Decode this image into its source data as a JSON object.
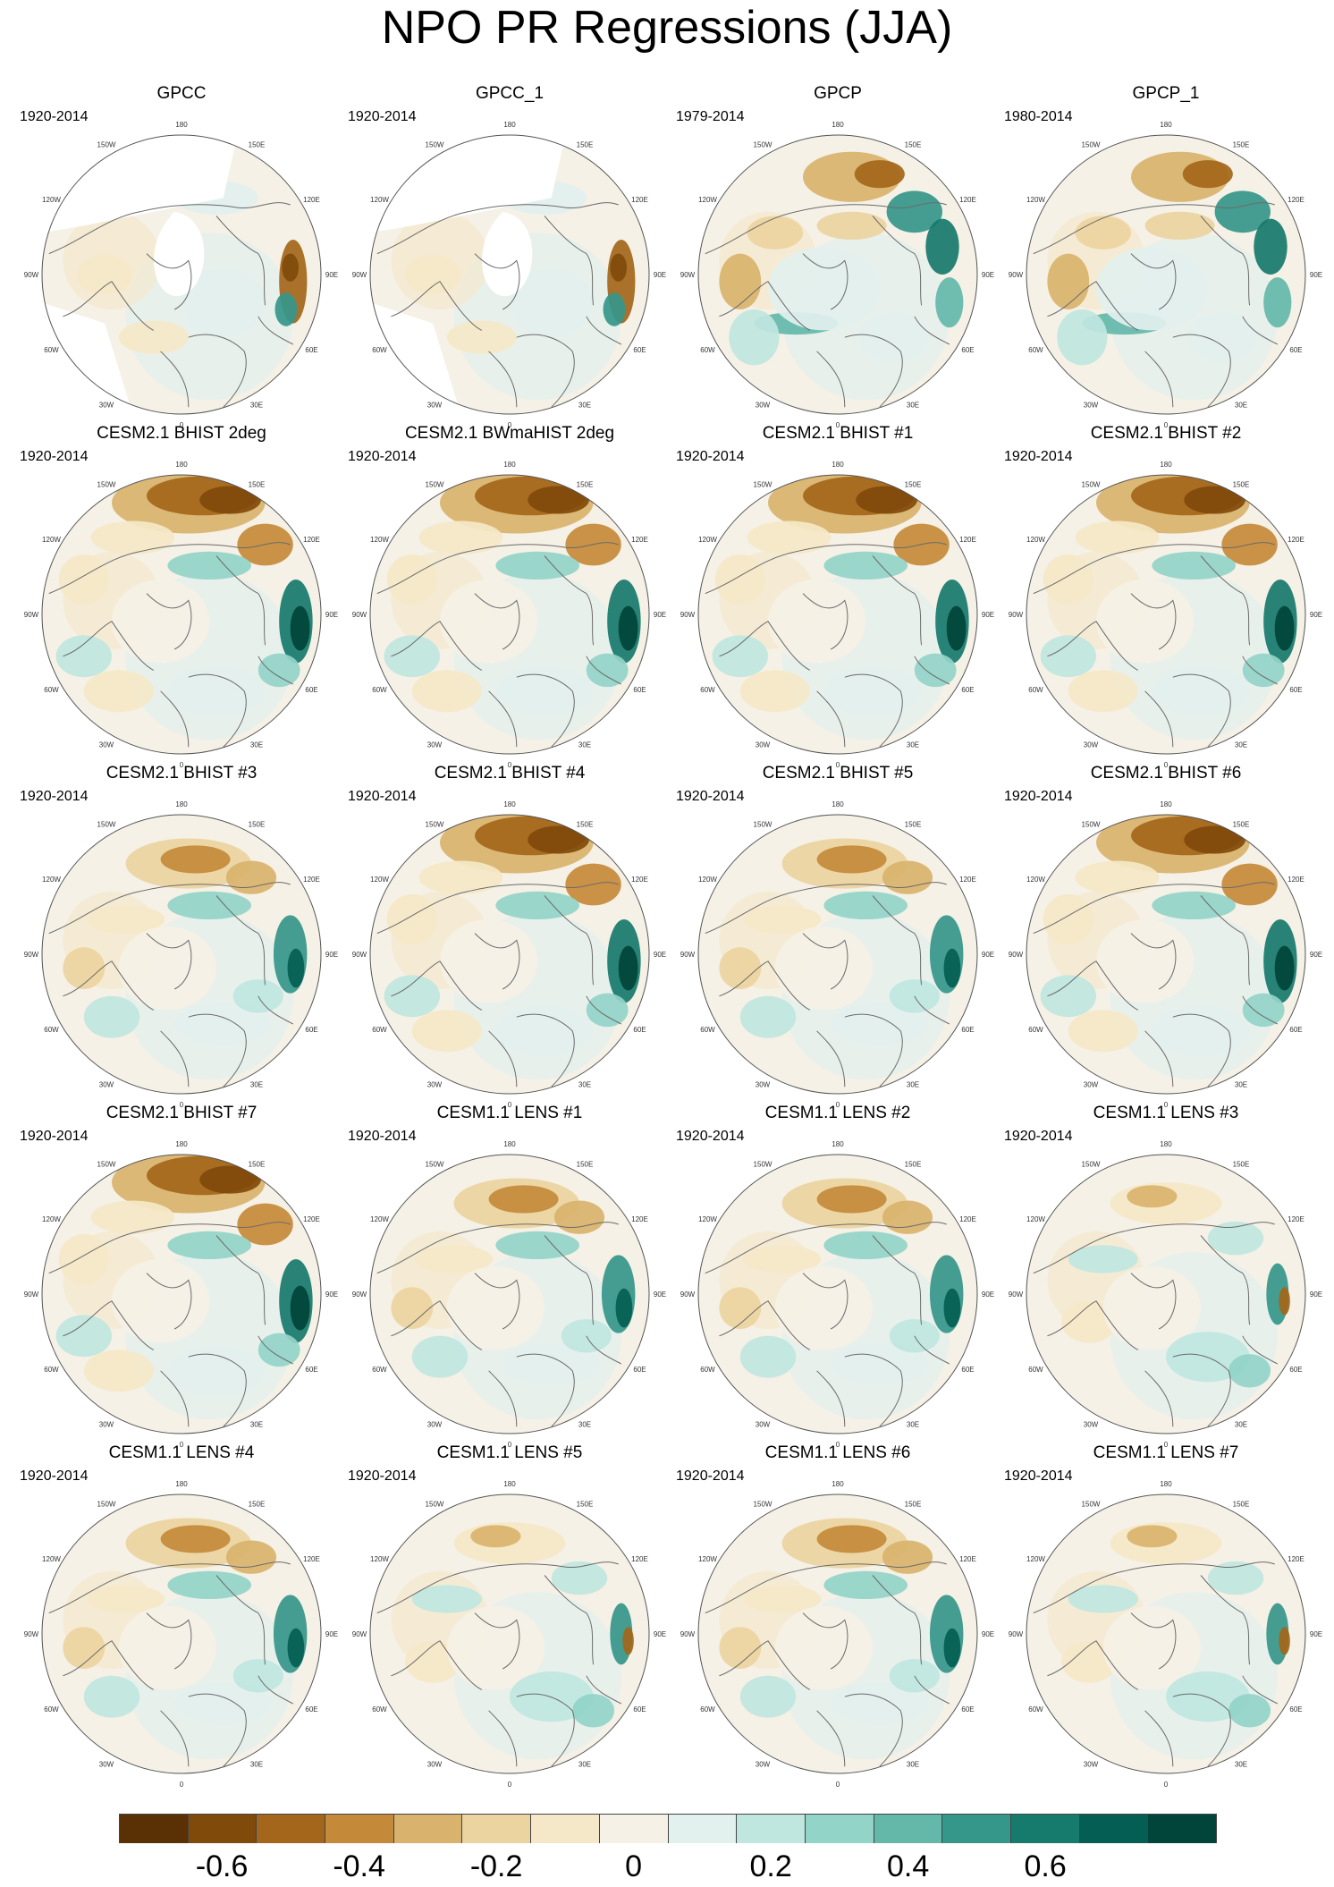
{
  "title": "NPO PR Regressions (JJA)",
  "meridian_labels": [
    "180",
    "150E",
    "120E",
    "90E",
    "60E",
    "30E",
    "0",
    "30W",
    "60W",
    "90W",
    "120W",
    "150W"
  ],
  "panels": [
    {
      "title": "GPCC",
      "period": "1920-2014",
      "pattern": "obs_gpcc"
    },
    {
      "title": "GPCC_1",
      "period": "1920-2014",
      "pattern": "obs_gpcc"
    },
    {
      "title": "GPCP",
      "period": "1979-2014",
      "pattern": "obs_gpcp"
    },
    {
      "title": "GPCP_1",
      "period": "1980-2014",
      "pattern": "obs_gpcp"
    },
    {
      "title": "CESM2.1 BHIST 2deg",
      "period": "1920-2014",
      "pattern": "model_strong"
    },
    {
      "title": "CESM2.1 BWmaHIST 2deg",
      "period": "1920-2014",
      "pattern": "model_strong"
    },
    {
      "title": "CESM2.1 BHIST #1",
      "period": "1920-2014",
      "pattern": "model_strong"
    },
    {
      "title": "CESM2.1 BHIST #2",
      "period": "1920-2014",
      "pattern": "model_strong"
    },
    {
      "title": "CESM2.1 BHIST #3",
      "period": "1920-2014",
      "pattern": "model_mid"
    },
    {
      "title": "CESM2.1 BHIST #4",
      "period": "1920-2014",
      "pattern": "model_strong"
    },
    {
      "title": "CESM2.1 BHIST #5",
      "period": "1920-2014",
      "pattern": "model_mid"
    },
    {
      "title": "CESM2.1 BHIST #6",
      "period": "1920-2014",
      "pattern": "model_strong"
    },
    {
      "title": "CESM2.1 BHIST #7",
      "period": "1920-2014",
      "pattern": "model_strong"
    },
    {
      "title": "CESM1.1 LENS #1",
      "period": "1920-2014",
      "pattern": "model_mid"
    },
    {
      "title": "CESM1.1 LENS #2",
      "period": "1920-2014",
      "pattern": "model_mid"
    },
    {
      "title": "CESM1.1 LENS #3",
      "period": "1920-2014",
      "pattern": "model_weak"
    },
    {
      "title": "CESM1.1 LENS #4",
      "period": "1920-2014",
      "pattern": "model_mid"
    },
    {
      "title": "CESM1.1 LENS #5",
      "period": "1920-2014",
      "pattern": "model_weak"
    },
    {
      "title": "CESM1.1 LENS #6",
      "period": "1920-2014",
      "pattern": "model_mid"
    },
    {
      "title": "CESM1.1 LENS #7",
      "period": "1920-2014",
      "pattern": "model_weak"
    }
  ],
  "colorbar": {
    "colors": [
      "#5a3005",
      "#804a0b",
      "#a3661a",
      "#c48a3a",
      "#d9b36d",
      "#ebd4a0",
      "#f5e8c8",
      "#f5f1e6",
      "#e2f0ee",
      "#bfe6df",
      "#93d4c8",
      "#63b8aa",
      "#35968a",
      "#167a6d",
      "#045e53",
      "#01443a"
    ],
    "labels": [
      "-0.6",
      "-0.4",
      "-0.2",
      "0",
      "0.2",
      "0.4",
      "0.6"
    ],
    "label_boundary_index": [
      1,
      3,
      5,
      7,
      9,
      11,
      13
    ]
  }
}
